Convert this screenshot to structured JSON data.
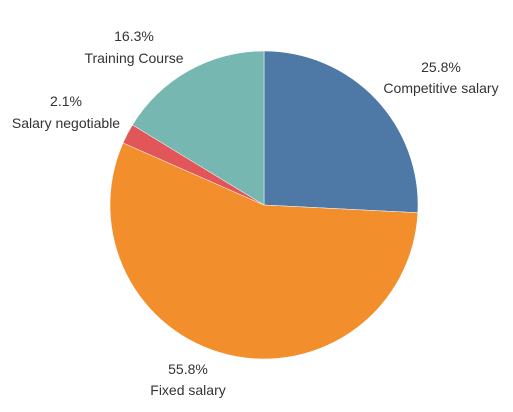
{
  "chart_data": {
    "type": "pie",
    "title": "",
    "start_angle_deg": 0,
    "direction": "clockwise",
    "slices": [
      {
        "label": "Competitive salary",
        "value": 25.8,
        "value_label": "25.8%",
        "color": "#4e79a7"
      },
      {
        "label": "Fixed salary",
        "value": 55.8,
        "value_label": "55.8%",
        "color": "#f28e2b"
      },
      {
        "label": "Salary negotiable",
        "value": 2.1,
        "value_label": "2.1%",
        "color": "#e15759"
      },
      {
        "label": "Training Course",
        "value": 16.3,
        "value_label": "16.3%",
        "color": "#76b7b2"
      }
    ]
  }
}
